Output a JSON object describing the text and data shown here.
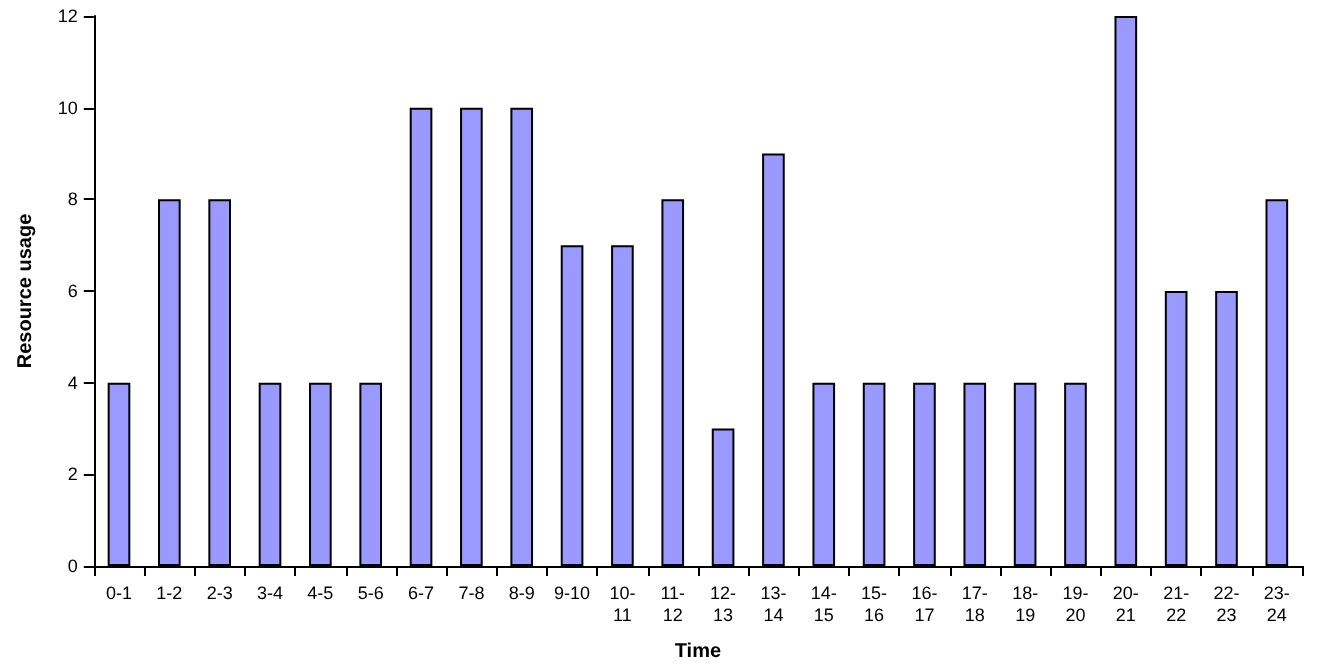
{
  "chart_data": {
    "type": "bar",
    "xlabel": "Time",
    "ylabel": "Resource usage",
    "categories": [
      "0-1",
      "1-2",
      "2-3",
      "3-4",
      "4-5",
      "5-6",
      "6-7",
      "7-8",
      "8-9",
      "9-10",
      "10-11",
      "11-12",
      "12-13",
      "13-14",
      "14-15",
      "15-16",
      "16-17",
      "17-18",
      "18-19",
      "19-20",
      "20-21",
      "21-22",
      "22-23",
      "23-24"
    ],
    "values": [
      4,
      8,
      8,
      4,
      4,
      4,
      10,
      10,
      10,
      7,
      7,
      8,
      3,
      9,
      4,
      4,
      4,
      4,
      4,
      4,
      12,
      6,
      6,
      8
    ],
    "color": "#9999ff",
    "ylim": [
      0,
      12
    ],
    "yticks": [
      0,
      2,
      4,
      6,
      8,
      10,
      12
    ],
    "grid": false
  }
}
